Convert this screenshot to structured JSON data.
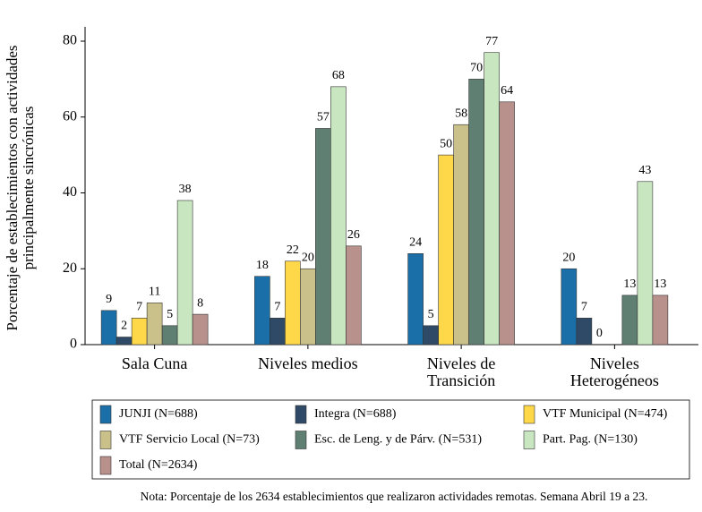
{
  "chart_data": {
    "type": "bar",
    "y_label": "Porcentaje de establecimientos con actividades\nprincipalmente sincrónicas",
    "categories": [
      "Sala Cuna",
      "Niveles medios",
      "Niveles de\nTransición",
      "Niveles\nHeterogéneos"
    ],
    "series": [
      {
        "name": "JUNJI (N=688)",
        "color": "#1a6fa8",
        "values": [
          9,
          18,
          24,
          20
        ]
      },
      {
        "name": "Integra (N=688)",
        "color": "#2e4a66",
        "values": [
          2,
          7,
          5,
          7
        ]
      },
      {
        "name": "VTF Municipal (N=474)",
        "color": "#ffd84a",
        "values": [
          7,
          22,
          50,
          0
        ]
      },
      {
        "name": "VTF Servicio Local (N=73)",
        "color": "#c9c08a",
        "values": [
          11,
          20,
          58,
          null
        ]
      },
      {
        "name": "Esc. de Leng. y de Párv. (N=531)",
        "color": "#5f7f72",
        "values": [
          5,
          57,
          70,
          13
        ]
      },
      {
        "name": "Part. Pag. (N=130)",
        "color": "#c8e6c0",
        "values": [
          38,
          68,
          77,
          43
        ]
      },
      {
        "name": "Total (N=2634)",
        "color": "#b8918c",
        "values": [
          8,
          26,
          64,
          13
        ]
      }
    ],
    "ylim": [
      0,
      80
    ],
    "yticks": [
      0,
      20,
      40,
      60,
      80
    ],
    "grid": false,
    "legend": "bottom",
    "note": "Nota: Porcentaje de los 2634 establecimientos que realizaron actividades remotas. Semana Abril 19 a 23."
  }
}
